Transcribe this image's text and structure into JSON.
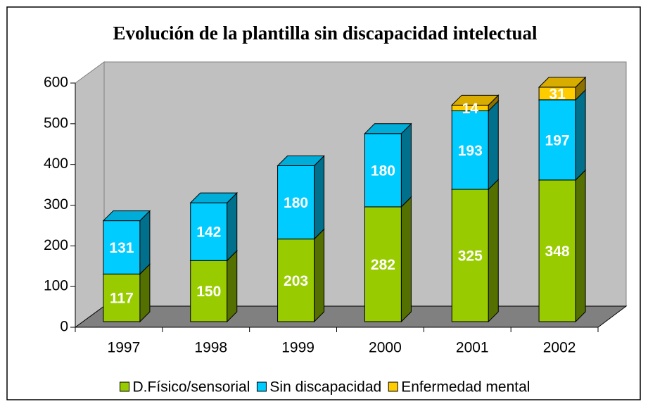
{
  "chart_data": {
    "type": "bar",
    "stacked": true,
    "title": "Evolución de la plantilla sin discapacidad intelectual",
    "categories": [
      "1997",
      "1998",
      "1999",
      "2000",
      "2001",
      "2002"
    ],
    "series": [
      {
        "name": "D.Físico/sensorial",
        "color": "#99cc00",
        "values": [
          117,
          150,
          203,
          282,
          325,
          348
        ]
      },
      {
        "name": "Sin discapacidad",
        "color": "#00ccff",
        "values": [
          131,
          142,
          180,
          180,
          193,
          197
        ]
      },
      {
        "name": "Enfermedad mental",
        "color": "#ffcc00",
        "values": [
          null,
          null,
          null,
          null,
          14,
          31
        ]
      }
    ],
    "ylim": [
      0,
      600
    ],
    "yticks": [
      0,
      100,
      200,
      300,
      400,
      500,
      600
    ],
    "legend": "bottom"
  }
}
